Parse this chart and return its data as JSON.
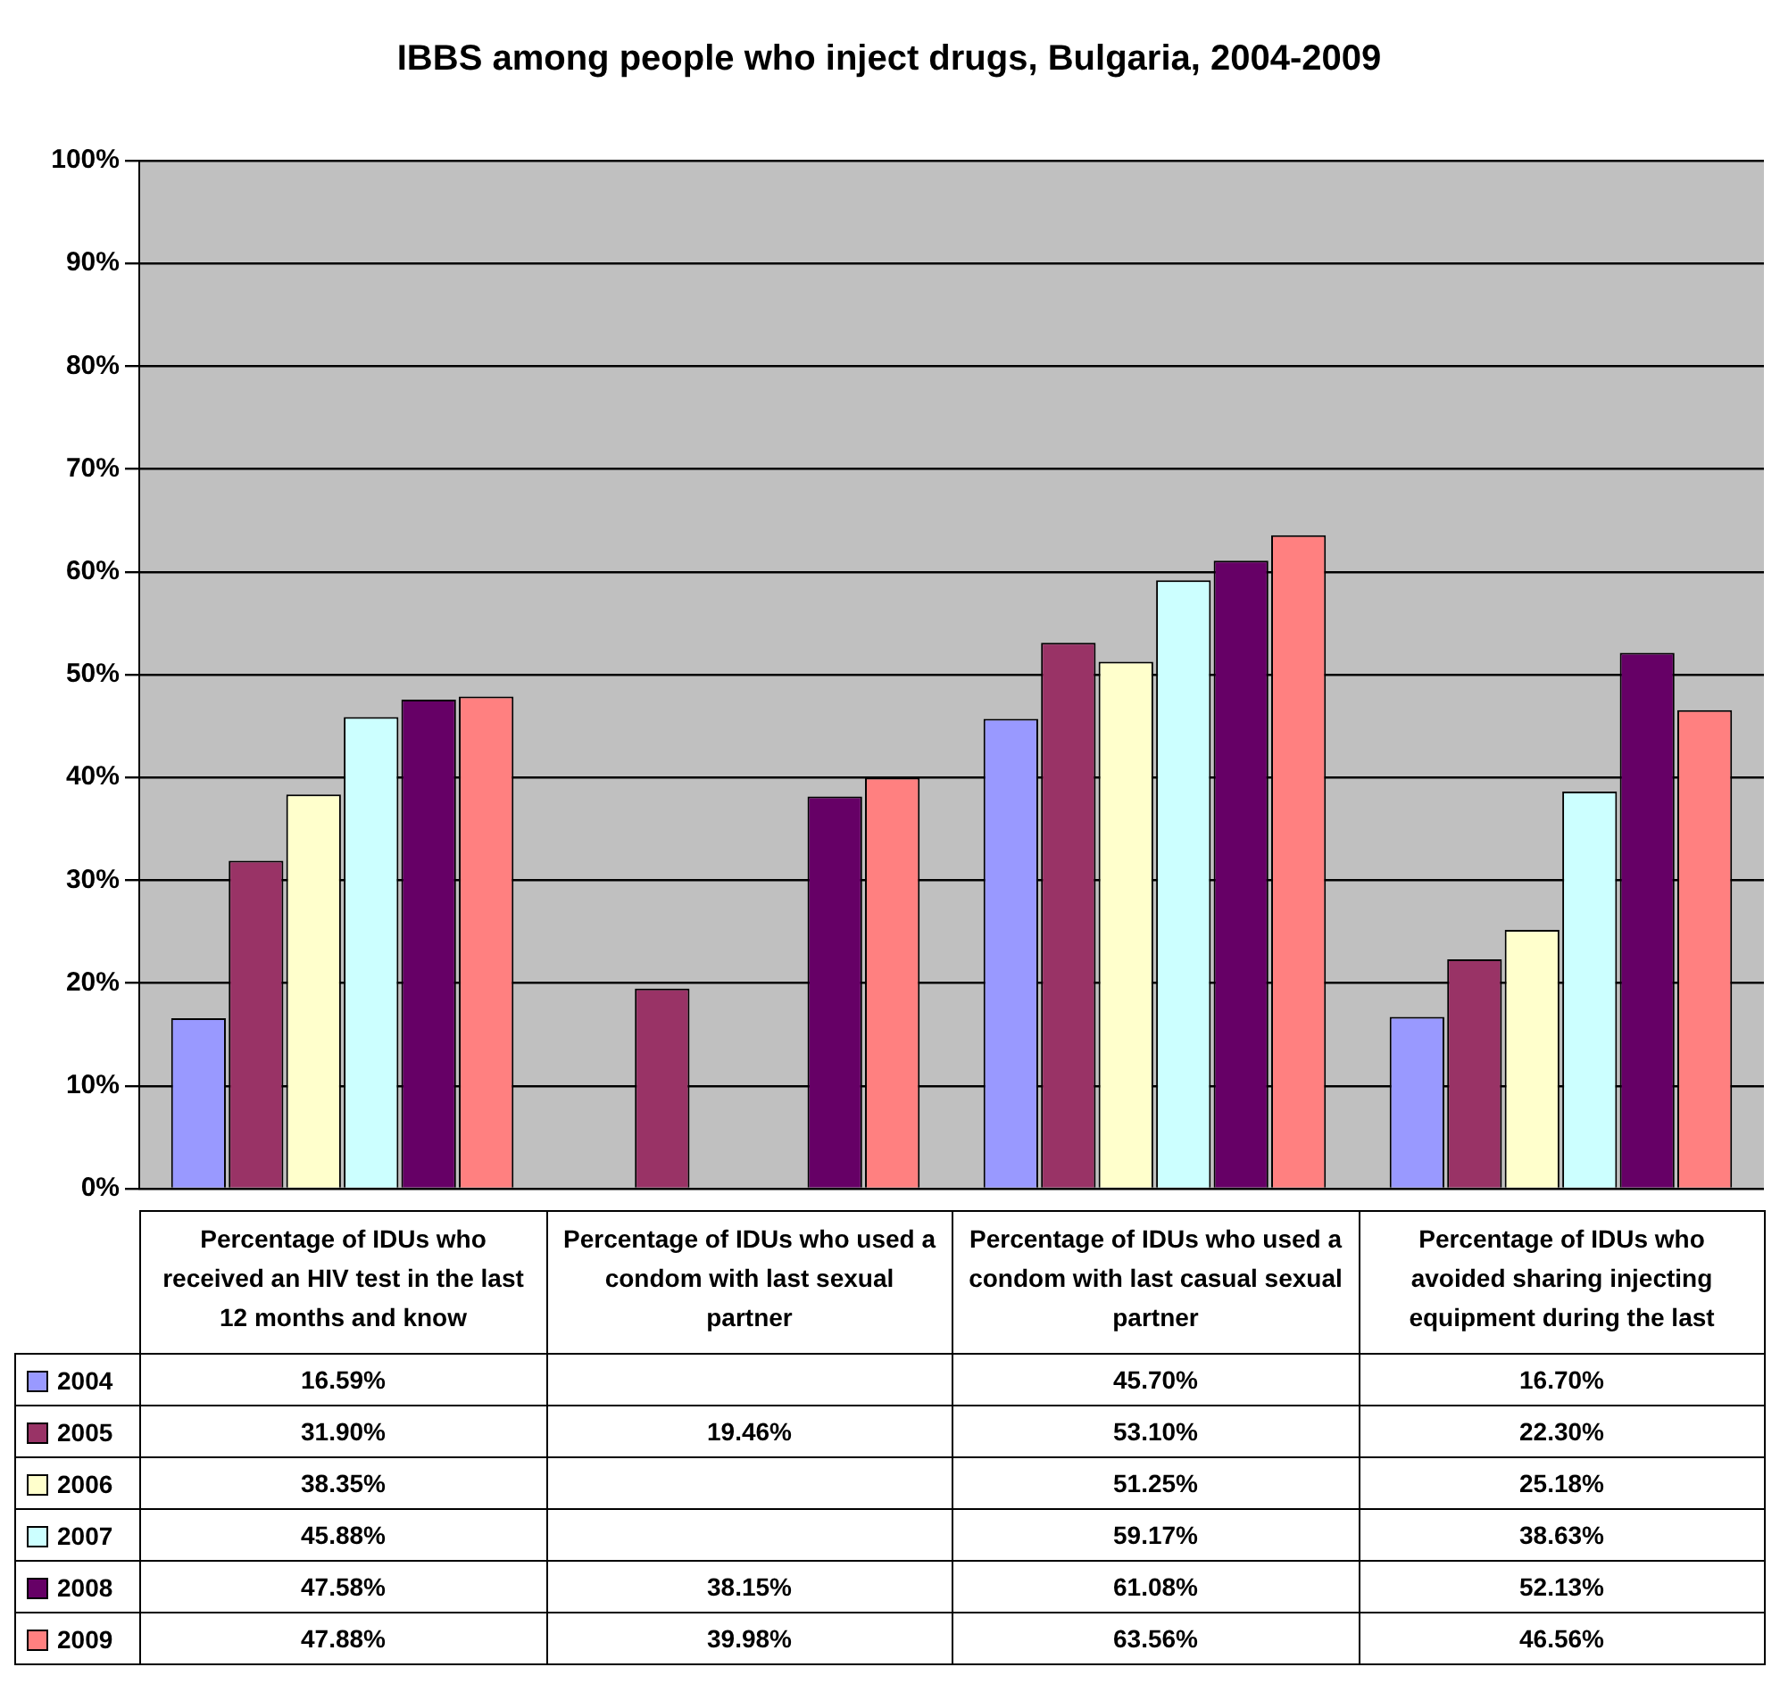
{
  "chart_data": {
    "type": "bar",
    "title": "IBBS among people who inject drugs, Bulgaria, 2004-2009",
    "categories": [
      "Percentage of IDUs who received an HIV test in the last 12 months and know",
      "Percentage of IDUs who used a condom with last sexual partner",
      "Percentage of IDUs who used a condom with last casual sexual partner",
      "Percentage of IDUs who avoided sharing injecting equipment during the last"
    ],
    "series": [
      {
        "name": "2004",
        "color": "#9999ff",
        "values": [
          16.59,
          null,
          45.7,
          16.7
        ],
        "value_labels": [
          "16.59%",
          null,
          "45.70%",
          "16.70%"
        ]
      },
      {
        "name": "2005",
        "color": "#993366",
        "values": [
          31.9,
          19.46,
          53.1,
          22.3
        ],
        "value_labels": [
          "31.90%",
          "19.46%",
          "53.10%",
          "22.30%"
        ]
      },
      {
        "name": "2006",
        "color": "#ffffcc",
        "values": [
          38.35,
          null,
          51.25,
          25.18
        ],
        "value_labels": [
          "38.35%",
          null,
          "51.25%",
          "25.18%"
        ]
      },
      {
        "name": "2007",
        "color": "#ccffff",
        "values": [
          45.88,
          null,
          59.17,
          38.63
        ],
        "value_labels": [
          "45.88%",
          null,
          "59.17%",
          "38.63%"
        ]
      },
      {
        "name": "2008",
        "color": "#660066",
        "values": [
          47.58,
          38.15,
          61.08,
          52.13
        ],
        "value_labels": [
          "47.58%",
          "38.15%",
          "61.08%",
          "52.13%"
        ]
      },
      {
        "name": "2009",
        "color": "#ff8080",
        "values": [
          47.88,
          39.98,
          63.56,
          46.56
        ],
        "value_labels": [
          "47.88%",
          "39.98%",
          "63.56%",
          "46.56%"
        ]
      }
    ],
    "ylim": [
      0,
      100
    ],
    "yticks": [
      {
        "value": 0,
        "label": "0%"
      },
      {
        "value": 10,
        "label": "10%"
      },
      {
        "value": 20,
        "label": "20%"
      },
      {
        "value": 30,
        "label": "30%"
      },
      {
        "value": 40,
        "label": "40%"
      },
      {
        "value": 50,
        "label": "50%"
      },
      {
        "value": 60,
        "label": "60%"
      },
      {
        "value": 70,
        "label": "70%"
      },
      {
        "value": 80,
        "label": "80%"
      },
      {
        "value": 90,
        "label": "90%"
      },
      {
        "value": 100,
        "label": "100%"
      }
    ],
    "grid": "y",
    "legend": "bottom left"
  }
}
